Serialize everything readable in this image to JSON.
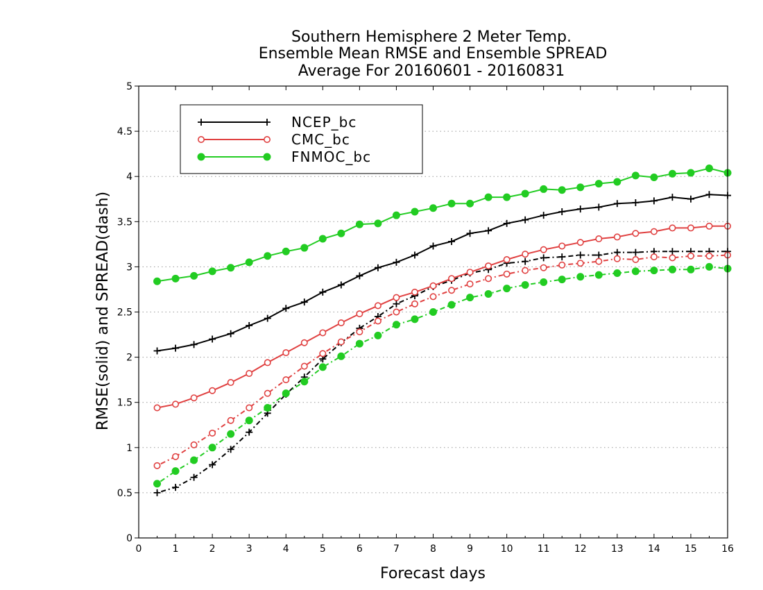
{
  "chart_data": {
    "type": "line",
    "title_lines": [
      "Southern Hemisphere 2 Meter Temp.",
      "Ensemble Mean RMSE and Ensemble SPREAD",
      "Average For 20160601 - 20160831"
    ],
    "xlabel": "Forecast days",
    "ylabel": "RMSE(solid) and SPREAD(dash)",
    "xlim": [
      0,
      16
    ],
    "ylim": [
      0,
      5
    ],
    "x_ticks": [
      "0",
      "1",
      "2",
      "3",
      "4",
      "5",
      "6",
      "7",
      "8",
      "9",
      "10",
      "11",
      "12",
      "13",
      "14",
      "15",
      "16"
    ],
    "y_ticks": [
      "0",
      "0.5",
      "1",
      "1.5",
      "2",
      "2.5",
      "3",
      "3.5",
      "4",
      "4.5",
      "5"
    ],
    "grid": "horizontal-dotted",
    "legend_position": "top-left",
    "x": [
      0.5,
      1,
      1.5,
      2,
      2.5,
      3,
      3.5,
      4,
      4.5,
      5,
      5.5,
      6,
      6.5,
      7,
      7.5,
      8,
      8.5,
      9,
      9.5,
      10,
      10.5,
      11,
      11.5,
      12,
      12.5,
      13,
      13.5,
      14,
      14.5,
      15,
      15.5,
      16
    ],
    "series": [
      {
        "name": "NCEP_bc",
        "color": "#000000",
        "marker": "plus",
        "rmse": [
          2.07,
          2.1,
          2.14,
          2.2,
          2.26,
          2.35,
          2.43,
          2.54,
          2.61,
          2.72,
          2.8,
          2.9,
          2.99,
          3.05,
          3.13,
          3.23,
          3.28,
          3.37,
          3.4,
          3.48,
          3.52,
          3.57,
          3.61,
          3.64,
          3.66,
          3.7,
          3.71,
          3.73,
          3.77,
          3.75,
          3.8,
          3.79
        ],
        "spread": [
          0.5,
          0.56,
          0.67,
          0.81,
          0.98,
          1.17,
          1.38,
          1.59,
          1.78,
          1.98,
          2.16,
          2.32,
          2.45,
          2.59,
          2.68,
          2.78,
          2.85,
          2.93,
          2.97,
          3.04,
          3.06,
          3.1,
          3.11,
          3.13,
          3.13,
          3.16,
          3.16,
          3.17,
          3.17,
          3.17,
          3.17,
          3.17
        ]
      },
      {
        "name": "CMC_bc",
        "color": "#e04040",
        "marker": "open-circle",
        "rmse": [
          1.44,
          1.48,
          1.55,
          1.63,
          1.72,
          1.82,
          1.94,
          2.05,
          2.16,
          2.27,
          2.38,
          2.48,
          2.57,
          2.66,
          2.72,
          2.79,
          2.87,
          2.94,
          3.01,
          3.08,
          3.14,
          3.19,
          3.23,
          3.27,
          3.31,
          3.33,
          3.37,
          3.39,
          3.43,
          3.43,
          3.45,
          3.45
        ],
        "spread": [
          0.8,
          0.9,
          1.03,
          1.16,
          1.3,
          1.44,
          1.6,
          1.75,
          1.9,
          2.04,
          2.17,
          2.28,
          2.4,
          2.5,
          2.59,
          2.67,
          2.74,
          2.81,
          2.87,
          2.92,
          2.96,
          2.99,
          3.02,
          3.04,
          3.06,
          3.09,
          3.08,
          3.11,
          3.1,
          3.12,
          3.12,
          3.13
        ]
      },
      {
        "name": "FNMOC_bc",
        "color": "#22cc22",
        "marker": "filled-circle",
        "rmse": [
          2.84,
          2.87,
          2.9,
          2.95,
          2.99,
          3.05,
          3.12,
          3.17,
          3.21,
          3.31,
          3.37,
          3.47,
          3.48,
          3.57,
          3.61,
          3.65,
          3.7,
          3.7,
          3.77,
          3.77,
          3.81,
          3.86,
          3.85,
          3.88,
          3.92,
          3.94,
          4.01,
          3.99,
          4.03,
          4.04,
          4.09,
          4.04
        ],
        "spread": [
          0.6,
          0.74,
          0.86,
          1.0,
          1.15,
          1.3,
          1.44,
          1.6,
          1.73,
          1.89,
          2.01,
          2.15,
          2.24,
          2.36,
          2.42,
          2.5,
          2.58,
          2.66,
          2.7,
          2.76,
          2.8,
          2.83,
          2.86,
          2.89,
          2.91,
          2.93,
          2.95,
          2.96,
          2.97,
          2.97,
          3.0,
          2.98
        ]
      }
    ]
  }
}
